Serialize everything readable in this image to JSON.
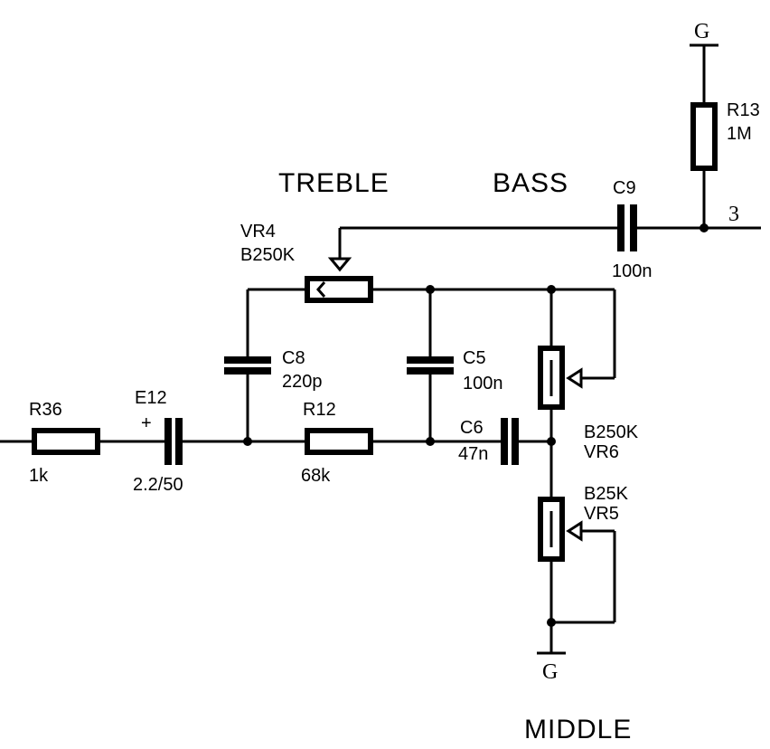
{
  "sections": {
    "treble": "TREBLE",
    "bass": "BASS",
    "middle": "MIDDLE"
  },
  "nodes": {
    "output": "3",
    "ground_top": "G",
    "ground_bottom": "G"
  },
  "components": {
    "r13": {
      "ref": "R13",
      "value": "1M"
    },
    "c9": {
      "ref": "C9",
      "value": "100n"
    },
    "vr4": {
      "ref": "VR4",
      "value": "B250K"
    },
    "c8": {
      "ref": "C8",
      "value": "220p"
    },
    "c5": {
      "ref": "C5",
      "value": "100n"
    },
    "r36": {
      "ref": "R36",
      "value": "1k"
    },
    "e12": {
      "ref": "E12",
      "value": "2.2/50",
      "polarity": "+"
    },
    "r12": {
      "ref": "R12",
      "value": "68k"
    },
    "c6": {
      "ref": "C6",
      "value": "47n"
    },
    "vr6": {
      "ref": "VR6",
      "value": "B250K"
    },
    "vr5": {
      "ref": "VR5",
      "value": "B25K"
    }
  }
}
